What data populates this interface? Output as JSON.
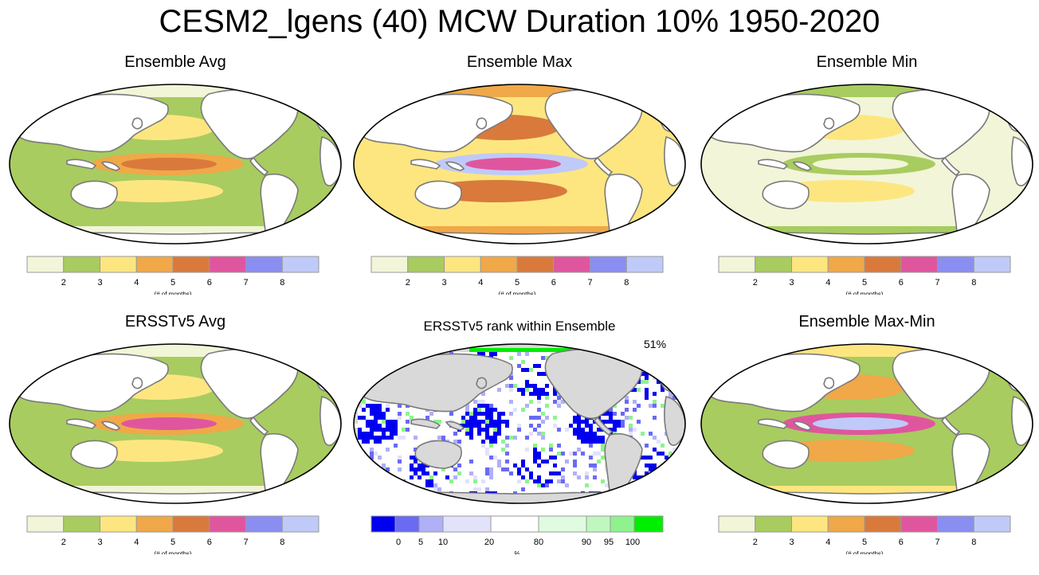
{
  "title": "CESM2_lgens (40) MCW Duration 10% 1950-2020",
  "palettes": {
    "months": [
      "#f2f5d8",
      "#a8cc60",
      "#fde680",
      "#f0a848",
      "#d97a3c",
      "#e0569e",
      "#8a8ef0",
      "#bfcaf8"
    ],
    "rank": [
      "#0000ee",
      "#6a6af2",
      "#b0b0f6",
      "#e2e2fa",
      "#ffffff",
      "#e0fbe0",
      "#c0f7c0",
      "#8ef38e",
      "#00ee00"
    ],
    "land": "#ffffff",
    "land_gray": "#d9d9d9",
    "coast": "#7a7a7a"
  },
  "colorbars": {
    "months": {
      "ticks": [
        "2",
        "3",
        "4",
        "5",
        "6",
        "7",
        "8"
      ],
      "unit_label": "(# of months)"
    },
    "rank": {
      "ticks": [
        "0",
        "5",
        "10",
        "20",
        "80",
        "90",
        "95",
        "100"
      ],
      "unit_label": "%"
    }
  },
  "panels": [
    {
      "id": "ensemble-avg",
      "title": "Ensemble Avg",
      "colorbar": "months",
      "intensity": "avg"
    },
    {
      "id": "ensemble-max",
      "title": "Ensemble Max",
      "colorbar": "months",
      "intensity": "max"
    },
    {
      "id": "ensemble-min",
      "title": "Ensemble Min",
      "colorbar": "months",
      "intensity": "min"
    },
    {
      "id": "ersst-avg",
      "title": "ERSSTv5 Avg",
      "colorbar": "months",
      "intensity": "obs"
    },
    {
      "id": "ersst-rank",
      "title": "ERSSTv5 rank within Ensemble",
      "colorbar": "rank",
      "intensity": "rank",
      "stat": "51%"
    },
    {
      "id": "ensemble-maxmin",
      "title": "Ensemble Max-Min",
      "colorbar": "months",
      "intensity": "range"
    }
  ]
}
